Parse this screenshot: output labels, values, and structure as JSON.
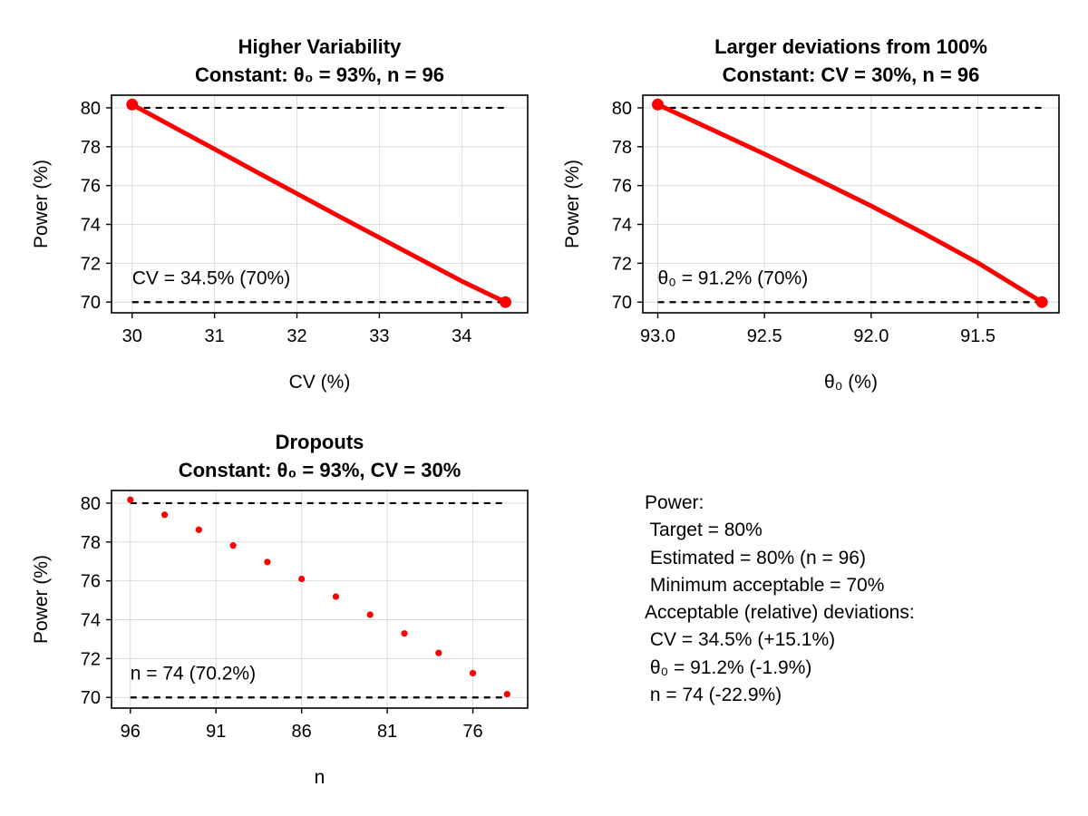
{
  "colors": {
    "series": "#ff0000",
    "reference": "#000000",
    "grid": "#dcdcdc"
  },
  "chart_data": [
    {
      "type": "line",
      "title": [
        "Higher Variability",
        "Constant: θ₀ = 93%, n = 96"
      ],
      "xlabel": "CV (%)",
      "ylabel": "Power (%)",
      "xlim": [
        29.75,
        34.8
      ],
      "ylim": [
        69.45,
        80.65
      ],
      "x_reversed": false,
      "xticks": [
        30,
        31,
        32,
        33,
        34
      ],
      "xtick_labels": [
        "30",
        "31",
        "32",
        "33",
        "34"
      ],
      "yticks": [
        70,
        72,
        74,
        76,
        78,
        80
      ],
      "ytick_labels": [
        "70",
        "72",
        "74",
        "76",
        "78",
        "80"
      ],
      "x": [
        30,
        30.5,
        31,
        31.5,
        32,
        32.5,
        33,
        33.5,
        34,
        34.53
      ],
      "y": [
        80.17,
        79.02,
        77.88,
        76.72,
        75.58,
        74.44,
        73.32,
        72.2,
        71.08,
        70.0
      ],
      "endpoints": [
        [
          30,
          80.17
        ],
        [
          34.53,
          70.0
        ]
      ],
      "reference_lines": [
        80,
        70
      ],
      "annotation": "CV = 34.5% (70%)",
      "annotation_anchor": [
        30,
        71.2
      ],
      "grid": true
    },
    {
      "type": "line",
      "title": [
        "Larger deviations from 100%",
        "Constant: CV = 30%, n = 96"
      ],
      "xlabel": "θ₀ (%)",
      "ylabel": "Power (%)",
      "xlim": [
        93.07,
        91.12
      ],
      "ylim": [
        69.45,
        80.65
      ],
      "x_reversed": true,
      "xticks": [
        93.0,
        92.5,
        92.0,
        91.5
      ],
      "xtick_labels": [
        "93.0",
        "92.5",
        "92.0",
        "91.5"
      ],
      "yticks": [
        70,
        72,
        74,
        76,
        78,
        80
      ],
      "ytick_labels": [
        "70",
        "72",
        "74",
        "76",
        "78",
        "80"
      ],
      "x": [
        93.0,
        92.75,
        92.5,
        92.25,
        92.0,
        91.75,
        91.5,
        91.2
      ],
      "y": [
        80.17,
        78.9,
        77.62,
        76.3,
        74.95,
        73.52,
        72.02,
        70.0
      ],
      "endpoints": [
        [
          93.0,
          80.17
        ],
        [
          91.2,
          70.0
        ]
      ],
      "reference_lines": [
        80,
        70
      ],
      "annotation": "θ₀ = 91.2% (70%)",
      "annotation_anchor": [
        93.0,
        71.2
      ],
      "grid": true
    },
    {
      "type": "scatter",
      "title": [
        "Dropouts",
        "Constant: θ₀ = 93%, CV = 30%"
      ],
      "xlabel": "n",
      "ylabel": "Power (%)",
      "xlim": [
        97.1,
        72.8
      ],
      "ylim": [
        69.45,
        80.65
      ],
      "x_reversed": true,
      "xticks": [
        96,
        91,
        86,
        81,
        76
      ],
      "xtick_labels": [
        "96",
        "91",
        "86",
        "81",
        "76"
      ],
      "yticks": [
        70,
        72,
        74,
        76,
        78,
        80
      ],
      "ytick_labels": [
        "70",
        "72",
        "74",
        "76",
        "78",
        "80"
      ],
      "x": [
        96,
        94,
        92,
        90,
        88,
        86,
        84,
        82,
        80,
        78,
        76,
        74
      ],
      "y": [
        80.17,
        79.4,
        78.63,
        77.82,
        76.97,
        76.1,
        75.19,
        74.26,
        73.29,
        72.29,
        71.25,
        70.17
      ],
      "reference_lines": [
        80,
        70
      ],
      "annotation": "n = 74 (70.2%)",
      "annotation_anchor": [
        96,
        71.2
      ],
      "grid": true
    }
  ],
  "summary": {
    "lines": [
      "Power:",
      " Target = 80%",
      " Estimated = 80% (n = 96)",
      " Minimum acceptable = 70%",
      "Acceptable (relative) deviations:",
      " CV = 34.5% (+15.1%)",
      " θ₀ = 91.2% (-1.9%)",
      " n = 74 (-22.9%)"
    ]
  }
}
